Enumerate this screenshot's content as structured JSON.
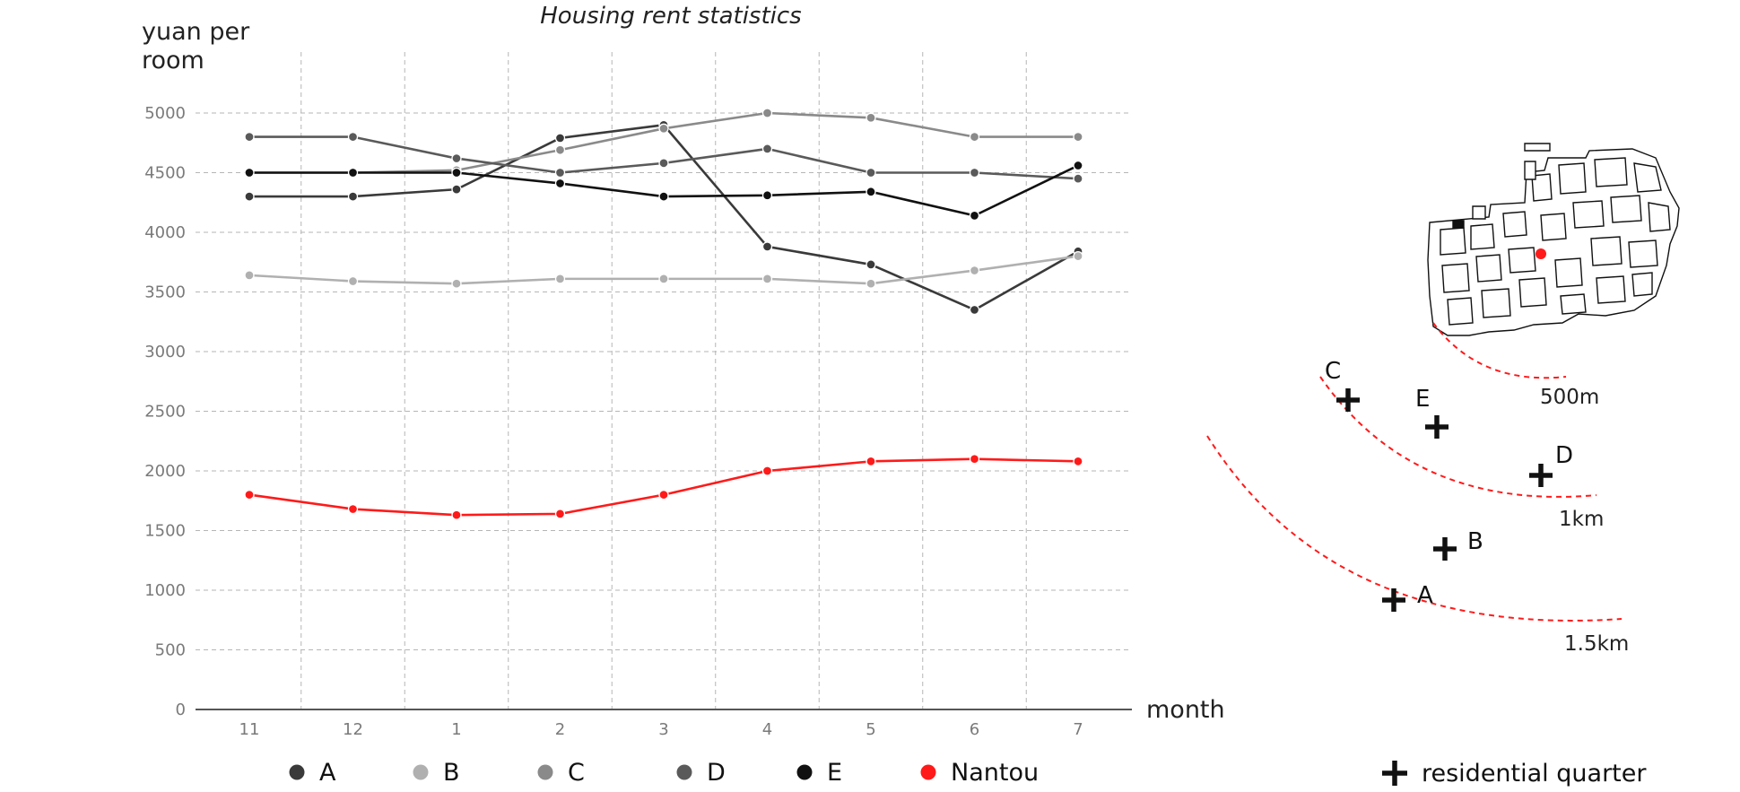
{
  "chart_data": {
    "type": "line",
    "title": "Housing rent statistics",
    "ylabel_line1": "yuan per",
    "ylabel_line2": "room",
    "xlabel": "month",
    "ylim": [
      0,
      5000
    ],
    "yticks": [
      0,
      500,
      1000,
      1500,
      2000,
      2500,
      3000,
      3500,
      4000,
      4500,
      5000
    ],
    "grid": true,
    "legend_position": "bottom",
    "categories": [
      "11",
      "12",
      "1",
      "2",
      "3",
      "4",
      "5",
      "6",
      "7"
    ],
    "series": [
      {
        "name": "A",
        "color": "#3a3a3a",
        "values": [
          4300,
          4300,
          4360,
          4790,
          4900,
          3880,
          3730,
          3350,
          3840
        ]
      },
      {
        "name": "B",
        "color": "#b0b0b0",
        "values": [
          3640,
          3590,
          3570,
          3610,
          3610,
          3610,
          3570,
          3680,
          3800
        ]
      },
      {
        "name": "C",
        "color": "#8a8a8a",
        "values": [
          4500,
          4500,
          4520,
          4690,
          4870,
          5000,
          4960,
          4800,
          4800
        ]
      },
      {
        "name": "D",
        "color": "#5a5a5a",
        "values": [
          4800,
          4800,
          4620,
          4500,
          4580,
          4700,
          4500,
          4500,
          4450
        ]
      },
      {
        "name": "E",
        "color": "#111111",
        "values": [
          4500,
          4500,
          4500,
          4410,
          4300,
          4310,
          4340,
          4140,
          4560
        ]
      },
      {
        "name": "Nantou",
        "color": "#ff1a1a",
        "values": [
          1800,
          1680,
          1630,
          1640,
          1800,
          2000,
          2080,
          2100,
          2080
        ]
      }
    ]
  },
  "map": {
    "rings": [
      "500m",
      "1km",
      "1.5km"
    ],
    "points": [
      "C",
      "E",
      "D",
      "B",
      "A"
    ],
    "marker_icon": "plus-icon",
    "legend_label": "residential quarter",
    "accent_color": "#ff1a1a"
  }
}
